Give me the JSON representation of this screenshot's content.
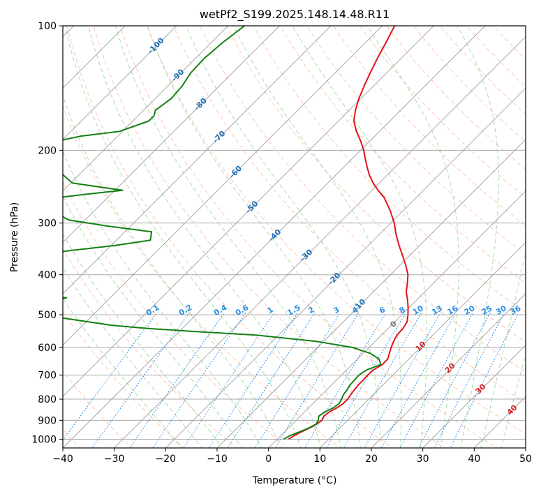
{
  "chart_data": {
    "type": "line",
    "subtype": "skew-t log-p diagram",
    "title": "wetPf2_S199.2025.148.14.48.R11",
    "xlabel": "Temperature (°C)",
    "ylabel": "Pressure (hPa)",
    "xlim": [
      -40,
      50
    ],
    "ylim": [
      1050,
      100
    ],
    "y_scale": "log",
    "grid": true,
    "x_ticks": [
      "−40",
      "−30",
      "−20",
      "−10",
      "0",
      "10",
      "20",
      "30",
      "40",
      "50"
    ],
    "y_ticks": [
      "100",
      "200",
      "300",
      "400",
      "500",
      "600",
      "700",
      "800",
      "900",
      "1000"
    ],
    "isotherm_labels": [
      "-100",
      "-90",
      "-80",
      "-70",
      "-60",
      "-50",
      "-40",
      "-30",
      "-20",
      "-10"
    ],
    "mixing_ratio_labels": [
      "0.1",
      "0.2",
      "0.4",
      "0.6",
      "1",
      "1.5",
      "2",
      "3",
      "4",
      "6",
      "8",
      "10",
      "13",
      "16",
      "20",
      "25",
      "30",
      "36"
    ],
    "moist_adiabat_labels": [
      "0",
      "10",
      "20",
      "30",
      "40"
    ],
    "colors": {
      "temperature": "#e0141b",
      "dewpoint": "#138013",
      "isotherm_label": "#1f6fb5",
      "mixing_ratio": "#2a8fe8",
      "moist_label_zero": "#7a7a7a",
      "moist_label": "#d62728",
      "dry_adiabat": "#ffb399",
      "moist_adiabat": "#8fcf8f",
      "skewed_isotherm": "#a8a8a8"
    },
    "series": [
      {
        "key": "temperature",
        "points": [
          [
            1000,
            2.2
          ],
          [
            980,
            2.6
          ],
          [
            960,
            3.3
          ],
          [
            940,
            4.1
          ],
          [
            920,
            4.7
          ],
          [
            900,
            5.0
          ],
          [
            880,
            4.6
          ],
          [
            860,
            4.8
          ],
          [
            840,
            5.5
          ],
          [
            820,
            5.9
          ],
          [
            800,
            5.9
          ],
          [
            780,
            5.6
          ],
          [
            760,
            5.4
          ],
          [
            740,
            5.2
          ],
          [
            720,
            5.2
          ],
          [
            700,
            5.1
          ],
          [
            680,
            5.2
          ],
          [
            660,
            5.9
          ],
          [
            640,
            5.9
          ],
          [
            620,
            5.1
          ],
          [
            600,
            4.3
          ],
          [
            580,
            3.6
          ],
          [
            560,
            3.0
          ],
          [
            540,
            2.9
          ],
          [
            520,
            2.4
          ],
          [
            500,
            1.2
          ],
          [
            480,
            -0.2
          ],
          [
            460,
            -1.8
          ],
          [
            440,
            -3.6
          ],
          [
            420,
            -5.0
          ],
          [
            400,
            -6.6
          ],
          [
            380,
            -8.8
          ],
          [
            360,
            -11.3
          ],
          [
            340,
            -14.0
          ],
          [
            320,
            -16.7
          ],
          [
            300,
            -19.3
          ],
          [
            280,
            -22.5
          ],
          [
            260,
            -26.3
          ],
          [
            250,
            -28.8
          ],
          [
            240,
            -31.2
          ],
          [
            230,
            -33.4
          ],
          [
            220,
            -35.4
          ],
          [
            210,
            -37.4
          ],
          [
            200,
            -39.4
          ],
          [
            190,
            -41.8
          ],
          [
            180,
            -44.5
          ],
          [
            170,
            -47.0
          ],
          [
            160,
            -48.8
          ],
          [
            150,
            -50.4
          ],
          [
            140,
            -51.8
          ],
          [
            130,
            -53.2
          ],
          [
            120,
            -54.6
          ],
          [
            110,
            -56.0
          ],
          [
            100,
            -57.6
          ]
        ]
      },
      {
        "key": "dewpoint",
        "points": [
          [
            1000,
            1.2
          ],
          [
            980,
            1.8
          ],
          [
            960,
            2.9
          ],
          [
            940,
            3.9
          ],
          [
            920,
            4.6
          ],
          [
            900,
            4.3
          ],
          [
            880,
            3.6
          ],
          [
            860,
            3.9
          ],
          [
            840,
            4.8
          ],
          [
            820,
            5.1
          ],
          [
            800,
            4.7
          ],
          [
            780,
            4.2
          ],
          [
            760,
            4.0
          ],
          [
            740,
            3.6
          ],
          [
            720,
            3.5
          ],
          [
            700,
            3.4
          ],
          [
            680,
            3.9
          ],
          [
            660,
            5.6
          ],
          [
            640,
            4.2
          ],
          [
            620,
            1.4
          ],
          [
            600,
            -3.2
          ],
          [
            580,
            -11.4
          ],
          [
            560,
            -24.4
          ],
          [
            550,
            -35.8
          ],
          [
            540,
            -46.5
          ],
          [
            530,
            -54.5
          ],
          [
            520,
            -59.6
          ],
          [
            510,
            -64.8
          ],
          [
            500,
            -70.4
          ],
          [
            490,
            -74.8
          ],
          [
            480,
            -79.0
          ],
          [
            475,
            -81.0
          ],
          [
            470,
            -79.0
          ],
          [
            462,
            -70.8
          ],
          [
            455,
            -68.5
          ],
          [
            445,
            -79.4
          ],
          [
            430,
            -84.2
          ],
          [
            400,
            -88.2
          ],
          [
            380,
            -90.5
          ],
          [
            375,
            -90.5
          ],
          [
            365,
            -86.2
          ],
          [
            350,
            -77.1
          ],
          [
            340,
            -69.3
          ],
          [
            330,
            -63.4
          ],
          [
            315,
            -64.8
          ],
          [
            305,
            -74.6
          ],
          [
            295,
            -83.2
          ],
          [
            280,
            -88.2
          ],
          [
            265,
            -91.4
          ],
          [
            260,
            -89.3
          ],
          [
            255,
            -84.3
          ],
          [
            250,
            -78.5
          ],
          [
            245,
            -84.0
          ],
          [
            240,
            -89.7
          ],
          [
            230,
            -92.9
          ],
          [
            220,
            -95.9
          ],
          [
            210,
            -99.0
          ],
          [
            200,
            -101.6
          ],
          [
            190,
            -100.7
          ],
          [
            185,
            -97.3
          ],
          [
            180,
            -90.5
          ],
          [
            170,
            -86.9
          ],
          [
            165,
            -86.9
          ],
          [
            160,
            -87.7
          ],
          [
            150,
            -86.9
          ],
          [
            140,
            -87.2
          ],
          [
            130,
            -88.1
          ],
          [
            120,
            -88.3
          ],
          [
            110,
            -87.8
          ],
          [
            100,
            -86.8
          ]
        ]
      }
    ]
  }
}
